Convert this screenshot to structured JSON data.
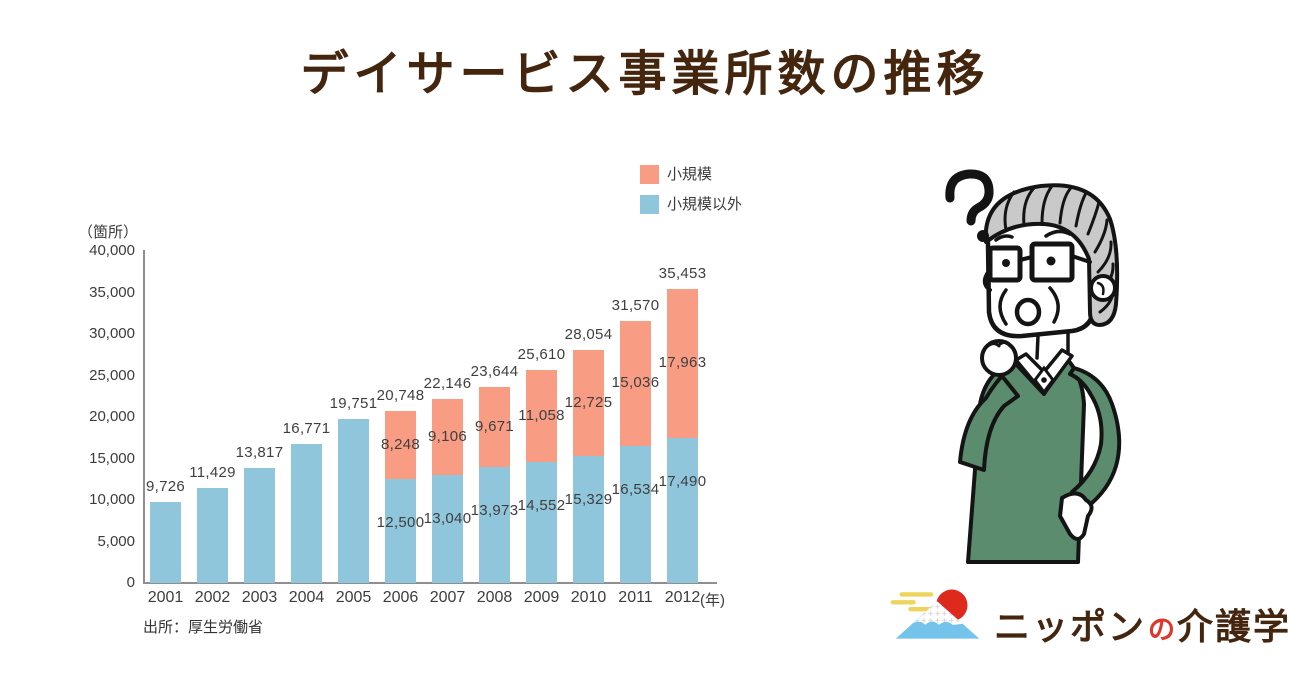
{
  "title": "デイサービス事業所数の推移",
  "legend": {
    "items": [
      {
        "label": "小規模",
        "color": "#F89C84"
      },
      {
        "label": "小規模以外",
        "color": "#90C6DC"
      }
    ]
  },
  "chart_data": {
    "type": "bar",
    "stacked": true,
    "title": "デイサービス事業所数の推移",
    "unit_label": "（箇所）",
    "x_suffix": "(年)",
    "categories": [
      "2001",
      "2002",
      "2003",
      "2004",
      "2005",
      "2006",
      "2007",
      "2008",
      "2009",
      "2010",
      "2011",
      "2012"
    ],
    "series": [
      {
        "name": "小規模以外",
        "color": "#90C6DC",
        "values": [
          9726,
          11429,
          13817,
          16771,
          19751,
          12500,
          13040,
          13973,
          14552,
          15329,
          16534,
          17490
        ]
      },
      {
        "name": "小規模",
        "color": "#F89C84",
        "values": [
          0,
          0,
          0,
          0,
          0,
          8248,
          9106,
          9671,
          11058,
          12725,
          15036,
          17963
        ]
      }
    ],
    "totals": [
      9726,
      11429,
      13817,
      16771,
      19751,
      20748,
      22146,
      23644,
      25610,
      28054,
      31570,
      35453
    ],
    "ylim": [
      0,
      40000
    ],
    "ytick_step": 5000,
    "grid": false,
    "legend_position": "top-right-of-plot",
    "xlabel": "年",
    "ylabel": "箇所"
  },
  "source": "出所：厚生労働省",
  "illustration": {
    "description": "thinking elderly man with question mark"
  },
  "logo": {
    "part1": "ニッポン",
    "part2": "の",
    "part3": "介護学",
    "brand_brown": "#44250E",
    "brand_red": "#E0372C"
  }
}
